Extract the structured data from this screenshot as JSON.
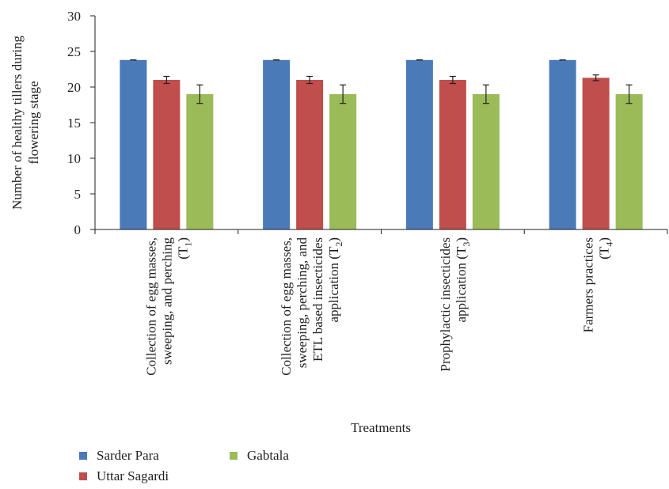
{
  "chart_data": {
    "type": "bar",
    "ylabel_lines": [
      "Number of healthy tillers during",
      "flowering stage"
    ],
    "xlabel": "Treatments",
    "ylim": [
      0,
      30
    ],
    "yticks": [
      "0",
      "5",
      "10",
      "15",
      "20",
      "25",
      "30"
    ],
    "categories": [
      {
        "lines": [
          {
            "text": "Collection of egg masses,"
          },
          {
            "text": "sweeping, and perching"
          },
          {
            "text": "(T",
            "sub": "1",
            "post": ")"
          }
        ]
      },
      {
        "lines": [
          {
            "text": "Collection of egg masses,"
          },
          {
            "text": "sweeping, perching, and"
          },
          {
            "text": "ETL based insecticides"
          },
          {
            "text": "application (T",
            "sub": "2",
            "post": ")"
          }
        ]
      },
      {
        "lines": [
          {
            "text": "Prophylactic insecticides"
          },
          {
            "text": "application (T",
            "sub": "3",
            "post": ")"
          }
        ]
      },
      {
        "lines": [
          {
            "text": "Farmers practices"
          },
          {
            "text": "(T",
            "sub": "4",
            "post": ")"
          }
        ]
      }
    ],
    "series": [
      {
        "name": "Sarder Para",
        "color": "#4a7ab7",
        "values": [
          23.8,
          23.8,
          23.8,
          23.8
        ],
        "errors": [
          0,
          0,
          0,
          0
        ]
      },
      {
        "name": "Uttar Sagardi",
        "color": "#bf4e4c",
        "values": [
          21.0,
          21.0,
          21.0,
          21.3
        ],
        "errors": [
          0.5,
          0.5,
          0.5,
          0.4
        ]
      },
      {
        "name": "Gabtala",
        "color": "#9bbb59",
        "values": [
          19.0,
          19.0,
          19.0,
          19.0
        ],
        "errors": [
          1.3,
          1.3,
          1.3,
          1.3
        ]
      }
    ],
    "grid": false,
    "legend_position": "bottom-left"
  }
}
